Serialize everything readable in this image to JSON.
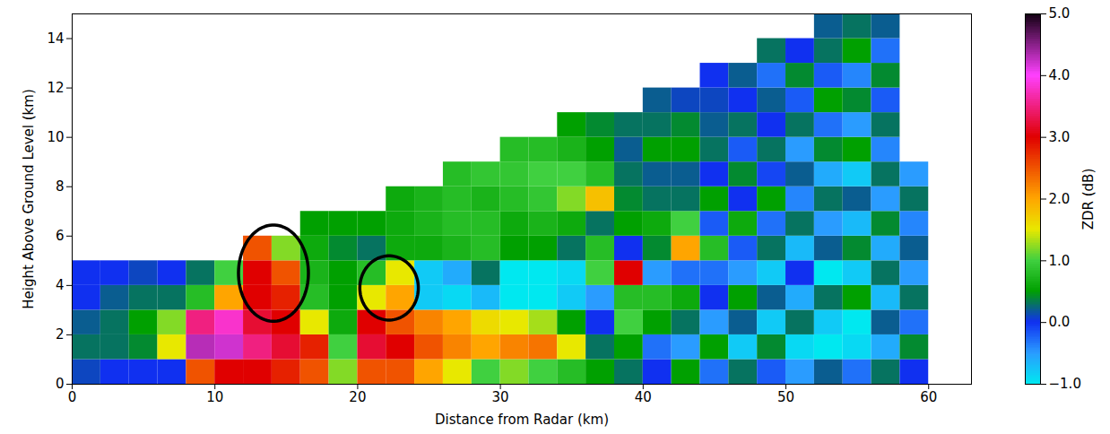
{
  "chart_data": {
    "type": "heatmap",
    "x_label": "Distance from Radar (km)",
    "y_label": "Height Above Ground Level (km)",
    "xlim": [
      0,
      63
    ],
    "xticks": [
      0,
      10,
      20,
      30,
      40,
      50,
      60
    ],
    "ylim": [
      0,
      15
    ],
    "yticks": [
      0,
      2,
      4,
      6,
      8,
      10,
      12,
      14
    ],
    "grid": false,
    "range_bins": [
      0,
      2,
      4,
      6,
      8,
      10,
      12,
      14,
      16,
      18,
      20,
      22,
      24,
      26,
      28,
      30,
      32,
      34,
      36,
      38,
      40,
      42,
      44,
      46,
      48,
      50,
      52,
      54,
      56,
      58,
      60
    ],
    "height_bins": [
      0,
      1,
      2,
      3,
      4,
      5,
      6,
      7,
      8,
      9,
      10,
      11,
      12,
      13,
      14,
      15
    ],
    "zdr": [
      [
        0.1,
        0,
        0,
        0,
        2.5,
        3.0,
        3.0,
        2.8,
        2.5,
        1.2,
        2.5,
        2.5,
        2.0,
        1.5,
        1.0,
        1.2,
        1.0,
        0.8,
        0.5,
        0.3,
        0.0,
        0.5,
        -0.3,
        0.3,
        -0.2,
        -0.5,
        0.2,
        -0.3,
        0.3,
        0.0
      ],
      [
        0.3,
        0.3,
        0.4,
        1.5,
        4.3,
        4.2,
        3.5,
        3.2,
        2.8,
        1.0,
        3.2,
        3.0,
        2.5,
        2.2,
        2.0,
        2.2,
        2.3,
        1.5,
        0.3,
        0.5,
        -0.3,
        -0.5,
        0.5,
        -0.8,
        0.4,
        -0.9,
        -1.0,
        -0.9,
        -0.6,
        0.4
      ],
      [
        0.2,
        0.3,
        0.5,
        1.2,
        3.5,
        3.8,
        3.2,
        3.0,
        1.5,
        0.6,
        3.0,
        2.5,
        2.2,
        2.0,
        1.6,
        1.5,
        1.3,
        0.5,
        0.0,
        1.0,
        0.5,
        0.3,
        -0.5,
        0.2,
        -0.8,
        0.3,
        -0.8,
        -1.0,
        0.2,
        -0.3
      ],
      [
        0,
        0.2,
        0.3,
        0.3,
        0.8,
        2.0,
        3.0,
        2.8,
        0.8,
        0.5,
        1.5,
        2.0,
        -0.8,
        -0.9,
        -0.7,
        -1.0,
        -1.0,
        -0.8,
        -0.5,
        0.8,
        0.8,
        0.6,
        0.0,
        0.5,
        0.2,
        -0.6,
        0.3,
        0.5,
        -0.7,
        0.3
      ],
      [
        0,
        0,
        0.1,
        0,
        0.3,
        1.0,
        3.0,
        2.5,
        0.7,
        0.5,
        0.8,
        1.5,
        -0.8,
        -0.6,
        0.3,
        -1.0,
        -1.0,
        -0.9,
        1.0,
        3.0,
        -0.5,
        -0.3,
        -0.3,
        -0.5,
        -0.8,
        0.0,
        -1.0,
        -0.8,
        0.3,
        -0.5
      ],
      [
        null,
        null,
        null,
        null,
        null,
        null,
        2.5,
        1.2,
        0.6,
        0.4,
        0.3,
        0.6,
        0.6,
        0.7,
        0.8,
        0.5,
        0.5,
        0.3,
        0.8,
        0.0,
        0.4,
        2.0,
        0.8,
        -0.2,
        0.3,
        -0.7,
        0.2,
        0.4,
        -0.6,
        0.2
      ],
      [
        null,
        null,
        null,
        null,
        null,
        null,
        null,
        null,
        0.5,
        0.5,
        0.5,
        0.6,
        0.7,
        0.8,
        0.8,
        0.6,
        0.7,
        0.6,
        0.3,
        0.5,
        0.6,
        1.0,
        -0.2,
        0.6,
        -0.3,
        0.3,
        -0.5,
        -0.7,
        0.4,
        -0.4
      ],
      [
        null,
        null,
        null,
        null,
        null,
        null,
        null,
        null,
        null,
        null,
        null,
        0.6,
        0.7,
        0.8,
        0.7,
        0.8,
        0.9,
        1.2,
        1.8,
        0.4,
        0.3,
        0.3,
        0.5,
        0.0,
        0.5,
        -0.4,
        0.3,
        0.2,
        -0.5,
        0.3
      ],
      [
        null,
        null,
        null,
        null,
        null,
        null,
        null,
        null,
        null,
        null,
        null,
        null,
        null,
        0.8,
        0.9,
        0.9,
        1.0,
        1.0,
        0.8,
        0.3,
        0.2,
        0.2,
        0.0,
        0.4,
        -0.1,
        0.2,
        -0.6,
        -0.8,
        0.3,
        -0.5
      ],
      [
        null,
        null,
        null,
        null,
        null,
        null,
        null,
        null,
        null,
        null,
        null,
        null,
        null,
        null,
        null,
        0.8,
        0.8,
        0.7,
        0.5,
        0.2,
        0.5,
        0.5,
        0.3,
        -0.2,
        0.3,
        -0.5,
        0.4,
        0.5,
        -0.4,
        null
      ],
      [
        null,
        null,
        null,
        null,
        null,
        null,
        null,
        null,
        null,
        null,
        null,
        null,
        null,
        null,
        null,
        null,
        null,
        0.5,
        0.4,
        0.3,
        0.3,
        0.4,
        0.2,
        0.3,
        0.0,
        0.3,
        -0.3,
        -0.5,
        0.3,
        null
      ],
      [
        null,
        null,
        null,
        null,
        null,
        null,
        null,
        null,
        null,
        null,
        null,
        null,
        null,
        null,
        null,
        null,
        null,
        null,
        null,
        null,
        0.2,
        0.1,
        0.1,
        0.0,
        0.2,
        -0.2,
        0.5,
        0.4,
        -0.2,
        null
      ],
      [
        null,
        null,
        null,
        null,
        null,
        null,
        null,
        null,
        null,
        null,
        null,
        null,
        null,
        null,
        null,
        null,
        null,
        null,
        null,
        null,
        null,
        null,
        0.0,
        0.2,
        -0.3,
        0.4,
        -0.2,
        -0.4,
        0.4,
        null
      ],
      [
        null,
        null,
        null,
        null,
        null,
        null,
        null,
        null,
        null,
        null,
        null,
        null,
        null,
        null,
        null,
        null,
        null,
        null,
        null,
        null,
        null,
        null,
        null,
        null,
        0.3,
        0.0,
        0.3,
        0.5,
        -0.3,
        null
      ],
      [
        null,
        null,
        null,
        null,
        null,
        null,
        null,
        null,
        null,
        null,
        null,
        null,
        null,
        null,
        null,
        null,
        null,
        null,
        null,
        null,
        null,
        null,
        null,
        null,
        null,
        null,
        0.2,
        0.3,
        0.2,
        null
      ]
    ],
    "colorbar": {
      "label": "ZDR (dB)",
      "range": [
        -1,
        5
      ],
      "ticks": [
        -1,
        0,
        1,
        2,
        3,
        4,
        5
      ]
    },
    "annotations": [
      {
        "shape": "ellipse",
        "x": 14.1,
        "y": 4.5,
        "x_radius": 2.45,
        "y_radius": 1.95
      },
      {
        "shape": "ellipse",
        "x": 22.2,
        "y": 3.9,
        "x_radius": 2.05,
        "y_radius": 1.3
      }
    ]
  }
}
